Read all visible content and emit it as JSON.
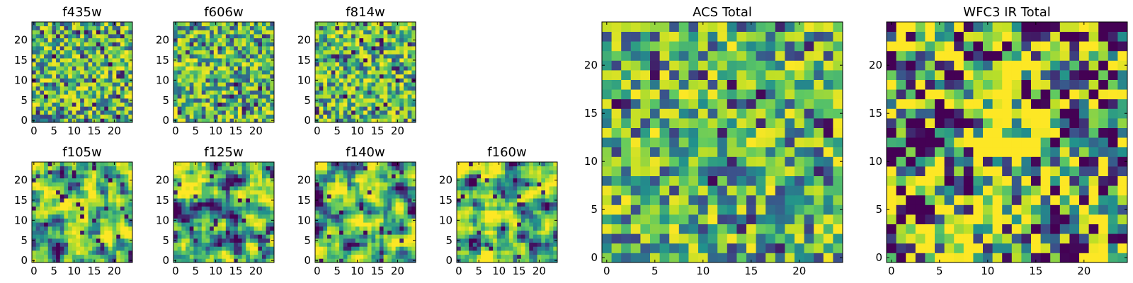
{
  "chart_data": [
    {
      "type": "heatmap",
      "title": "f435w",
      "grid_size": 25,
      "xticks": [
        "0",
        "5",
        "10",
        "15",
        "20"
      ],
      "yticks": [
        "0",
        "5",
        "10",
        "15",
        "20"
      ],
      "colormap": "viridis",
      "pattern": "noise",
      "grid": false
    },
    {
      "type": "heatmap",
      "title": "f606w",
      "grid_size": 25,
      "xticks": [
        "0",
        "5",
        "10",
        "15",
        "20"
      ],
      "yticks": [
        "0",
        "5",
        "10",
        "15",
        "20"
      ],
      "colormap": "viridis",
      "pattern": "noise",
      "grid": false
    },
    {
      "type": "heatmap",
      "title": "f814w",
      "grid_size": 25,
      "xticks": [
        "0",
        "5",
        "10",
        "15",
        "20"
      ],
      "yticks": [
        "0",
        "5",
        "10",
        "15",
        "20"
      ],
      "colormap": "viridis",
      "pattern": "noise",
      "grid": false
    },
    {
      "type": "heatmap",
      "title": "f105w",
      "grid_size": 25,
      "xticks": [
        "0",
        "5",
        "10",
        "15",
        "20"
      ],
      "yticks": [
        "0",
        "5",
        "10",
        "15",
        "20"
      ],
      "colormap": "viridis",
      "pattern": "smooth-center-bright",
      "grid": false
    },
    {
      "type": "heatmap",
      "title": "f125w",
      "grid_size": 25,
      "xticks": [
        "0",
        "5",
        "10",
        "15",
        "20"
      ],
      "yticks": [
        "0",
        "5",
        "10",
        "15",
        "20"
      ],
      "colormap": "viridis",
      "pattern": "smooth",
      "grid": false
    },
    {
      "type": "heatmap",
      "title": "f140w",
      "grid_size": 25,
      "xticks": [
        "0",
        "5",
        "10",
        "15",
        "20"
      ],
      "yticks": [
        "0",
        "5",
        "10",
        "15",
        "20"
      ],
      "colormap": "viridis",
      "pattern": "smooth",
      "grid": false
    },
    {
      "type": "heatmap",
      "title": "f160w",
      "grid_size": 25,
      "xticks": [
        "0",
        "5",
        "10",
        "15",
        "20"
      ],
      "yticks": [
        "0",
        "5",
        "10",
        "15",
        "20"
      ],
      "colormap": "viridis",
      "pattern": "smooth",
      "grid": false
    },
    {
      "type": "heatmap",
      "title": "ACS Total",
      "grid_size": 25,
      "xticks": [
        "0",
        "5",
        "10",
        "15",
        "20"
      ],
      "yticks": [
        "0",
        "5",
        "10",
        "15",
        "20"
      ],
      "colormap": "viridis",
      "pattern": "noise",
      "grid": false
    },
    {
      "type": "heatmap",
      "title": "WFC3 IR Total",
      "grid_size": 25,
      "xticks": [
        "0",
        "5",
        "10",
        "15",
        "20"
      ],
      "yticks": [
        "0",
        "5",
        "10",
        "15",
        "20"
      ],
      "colormap": "viridis",
      "pattern": "center-bright",
      "grid": false
    }
  ],
  "colors": {
    "viridis_stops": [
      "#440154",
      "#3b528b",
      "#21918c",
      "#5ec962",
      "#bddf26",
      "#fde725"
    ],
    "axis": "#000000",
    "background": "#ffffff"
  }
}
